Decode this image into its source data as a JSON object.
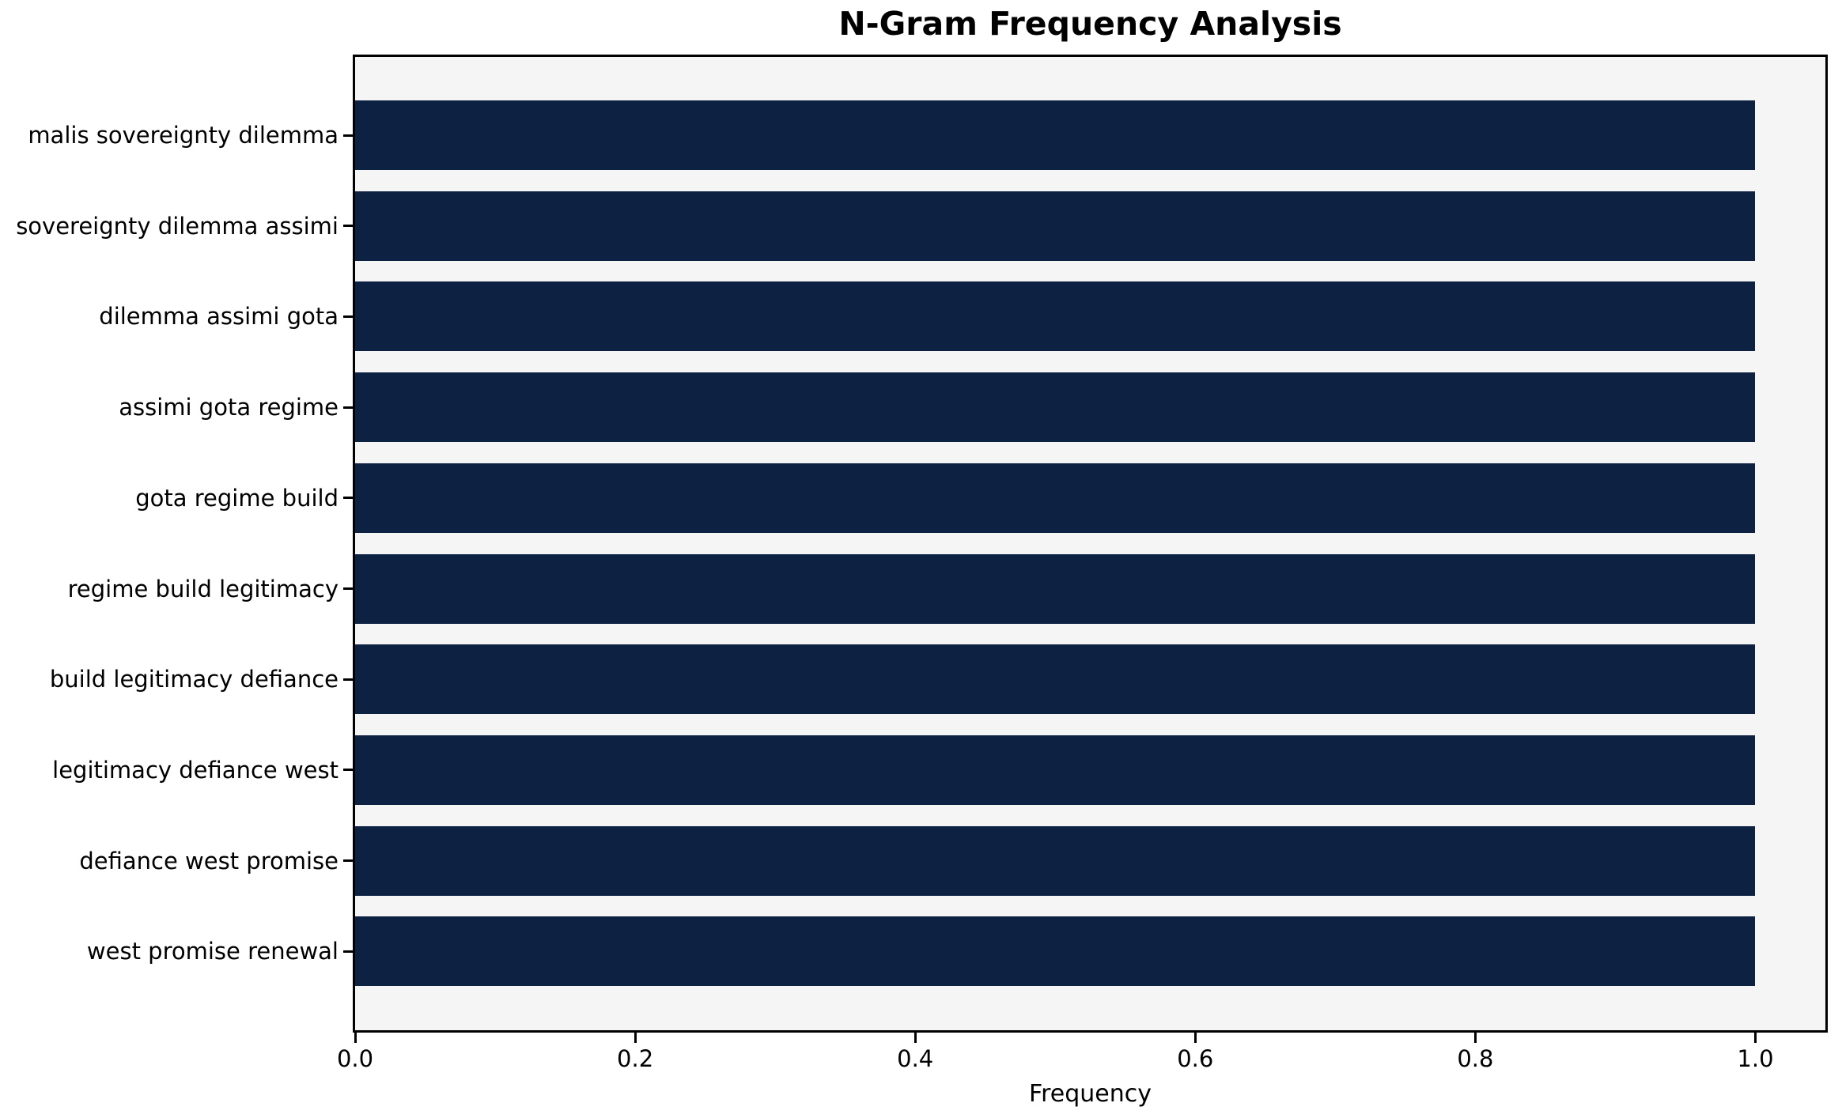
{
  "chart_data": {
    "type": "bar",
    "orientation": "horizontal",
    "title": "N-Gram Frequency Analysis",
    "xlabel": "Frequency",
    "ylabel": "",
    "categories": [
      "malis sovereignty dilemma",
      "sovereignty dilemma assimi",
      "dilemma assimi gota",
      "assimi gota regime",
      "gota regime build",
      "regime build legitimacy",
      "build legitimacy defiance",
      "legitimacy defiance west",
      "defiance west promise",
      "west promise renewal"
    ],
    "values": [
      1.0,
      1.0,
      1.0,
      1.0,
      1.0,
      1.0,
      1.0,
      1.0,
      1.0,
      1.0
    ],
    "xticks": [
      0.0,
      0.2,
      0.4,
      0.6,
      0.8,
      1.0
    ],
    "xlim": [
      0,
      1.05
    ],
    "grid": false,
    "legend": false,
    "bar_color": "#0d2242",
    "plot_background": "#f5f5f5",
    "figure_background": "#ffffff",
    "text_color": "#000000"
  }
}
